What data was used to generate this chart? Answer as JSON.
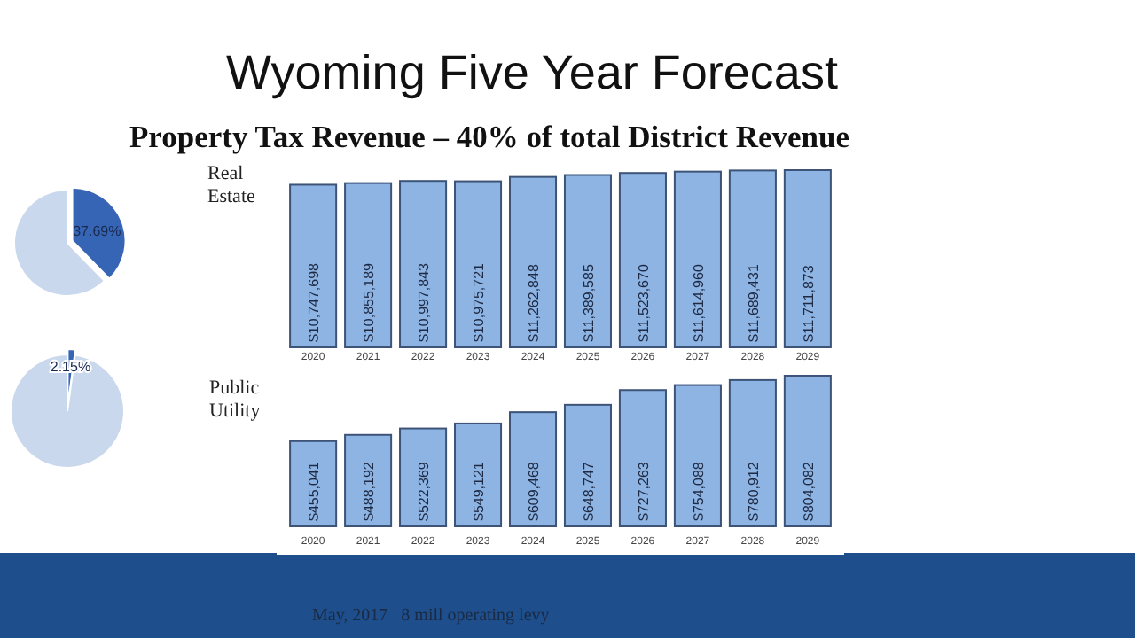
{
  "chart_data": [
    {
      "type": "pie",
      "categories": [
        null,
        null
      ],
      "values": [
        37.69,
        62.31
      ],
      "colors": [
        "#3565b4",
        "#c9d8ec"
      ],
      "value_labels": [
        "37.69%",
        null
      ]
    },
    {
      "type": "bar",
      "title": "Wyoming Five Year Forecast",
      "subtitle": "Property Tax Revenue – 40% of total District Revenue",
      "annotations": [
        "Real Estate"
      ],
      "categories": [
        "2020",
        "2021",
        "2022",
        "2023",
        "2024",
        "2025",
        "2026",
        "2027",
        "2028",
        "2029"
      ],
      "values": [
        10747698,
        10855189,
        10997843,
        10975721,
        11262848,
        11389585,
        11523670,
        11614960,
        11689431,
        11711873
      ],
      "color": "#8eb4e3",
      "value_labels": [
        "$10,747,698",
        "$10,855,189",
        "$10,997,843",
        "$10,975,721",
        "$11,262,848",
        "$11,389,585",
        "$11,523,670",
        "$11,614,960",
        "$11,689,431",
        "$11,711,873"
      ]
    },
    {
      "type": "pie",
      "categories": [
        null,
        null
      ],
      "values": [
        2.15,
        97.85
      ],
      "colors": [
        "#3565b4",
        "#c9d8ec"
      ],
      "value_labels": [
        "2.15%",
        null
      ]
    },
    {
      "type": "bar",
      "title": "Public Utility",
      "categories": [
        "2020",
        "2021",
        "2022",
        "2023",
        "2024",
        "2025",
        "2026",
        "2027",
        "2028",
        "2029"
      ],
      "values": [
        455041,
        488192,
        522369,
        549121,
        609468,
        648747,
        727263,
        754088,
        780912,
        804082
      ],
      "color": "#8eb4e3",
      "value_labels": [
        "$455,041",
        "$488,192",
        "$522,369",
        "$549,121",
        "$609,468",
        "$648,747",
        "$727,263",
        "$754,088",
        "$780,912",
        "$804,082"
      ],
      "annotations": [
        "May, 2017   8 mill operating levy"
      ]
    }
  ]
}
